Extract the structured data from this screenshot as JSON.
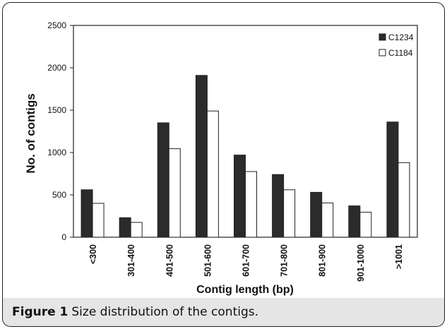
{
  "caption": {
    "label": "Figure 1",
    "text": "Size distribution of the contigs."
  },
  "chart_data": {
    "type": "bar",
    "title": "",
    "xlabel": "Contig length (bp)",
    "ylabel": "No. of contigs",
    "ylim": [
      0,
      2500
    ],
    "yticks": [
      0,
      500,
      1000,
      1500,
      2000,
      2500
    ],
    "categories": [
      "<300",
      "301-400",
      "401-500",
      "501-600",
      "601-700",
      "701-800",
      "801-900",
      "901-1000",
      ">1001"
    ],
    "series": [
      {
        "name": "C1234",
        "color": "#2b2b2b",
        "values": [
          560,
          230,
          1350,
          1910,
          970,
          740,
          530,
          370,
          1360
        ]
      },
      {
        "name": "C1184",
        "color": "#ffffff",
        "values": [
          400,
          175,
          1045,
          1490,
          775,
          560,
          405,
          295,
          880
        ]
      }
    ],
    "legend_position": "top-right",
    "grid": false
  }
}
